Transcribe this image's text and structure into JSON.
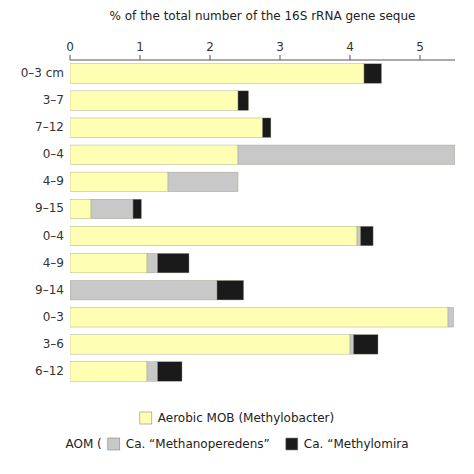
{
  "chart_data": {
    "type": "bar",
    "orientation": "horizontal",
    "stacked": true,
    "x_label": "% of the total number of the 16S rRNA gene seque",
    "categories": [
      "0–3 cm",
      "3–7",
      "7–12",
      "0–4",
      "4–9",
      "9–15",
      "0–4",
      "4–9",
      "9–14",
      "0–3",
      "3–6",
      "6–12"
    ],
    "series": [
      {
        "name": "Aerobic MOB (Methylobacter)",
        "color": "#FFFFB3",
        "values": [
          4.2,
          2.4,
          2.75,
          2.4,
          1.4,
          0.3,
          4.1,
          1.1,
          0,
          5.4,
          4.0,
          1.1
        ]
      },
      {
        "name": "Ca. “Methanoperedens”",
        "color": "#C8C8C8",
        "values": [
          0,
          0,
          0,
          3.1,
          1.0,
          0.6,
          0.05,
          0.15,
          2.1,
          0.08,
          0.05,
          0.15
        ]
      },
      {
        "name": "Ca. “Methylomira",
        "color": "#1A1A1A",
        "values": [
          0.25,
          0.15,
          0.12,
          0,
          0,
          0.12,
          0.18,
          0.45,
          0.38,
          0,
          0.35,
          0.35
        ]
      }
    ],
    "annotations": [
      "AOM ("
    ],
    "xlim": [
      0,
      5.5
    ],
    "xticks": [
      0,
      1,
      2,
      3,
      4,
      5
    ],
    "grid": false,
    "legend": "bottom"
  }
}
